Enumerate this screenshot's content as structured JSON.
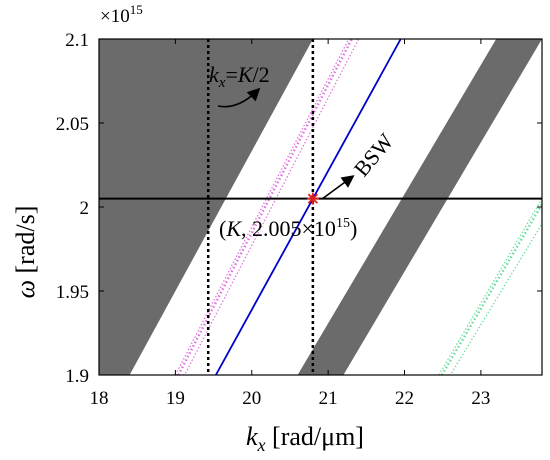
{
  "chart_data": {
    "type": "band-diagram",
    "xlabel": {
      "main": "k",
      "sub": "x",
      "unit": " [rad/μm]"
    },
    "ylabel": {
      "main": "ω",
      "unit": " [rad/s]"
    },
    "y_exponent": "×10",
    "y_exponent_power": "15",
    "xlim": [
      18,
      23.8
    ],
    "ylim": [
      1.9,
      2.1
    ],
    "x_ticks": [
      18,
      19,
      20,
      21,
      22,
      23
    ],
    "y_ticks": [
      1.9,
      1.95,
      2.0,
      2.05,
      2.1
    ],
    "x_tick_labels": [
      "18",
      "19",
      "20",
      "21",
      "22",
      "23"
    ],
    "y_tick_labels": [
      "1.9",
      "1.95",
      "2",
      "2.05",
      "2.1"
    ],
    "gray_bands": [
      {
        "name": "band-left",
        "lower": [
          [
            18.0,
            1.9
          ],
          [
            18.0,
            2.1
          ]
        ],
        "upper": [
          [
            18.4,
            1.9
          ],
          [
            20.8,
            2.1
          ]
        ]
      },
      {
        "name": "band-right",
        "lower": [
          [
            20.6,
            1.9
          ],
          [
            23.2,
            2.1
          ]
        ],
        "upper": [
          [
            21.2,
            1.9
          ],
          [
            23.8,
            2.1
          ]
        ]
      }
    ],
    "blue_line": [
      [
        19.53,
        1.9
      ],
      [
        21.95,
        2.1
      ]
    ],
    "magenta_band": [
      [
        19.0,
        1.9
      ],
      [
        21.27,
        2.1
      ],
      [
        19.12,
        1.9
      ],
      [
        21.4,
        2.1
      ]
    ],
    "green_band": [
      [
        22.45,
        1.9
      ],
      [
        23.8,
        2.005
      ],
      [
        22.6,
        1.9
      ],
      [
        23.8,
        1.99
      ]
    ],
    "hline_y": 2.005,
    "vlines_x": [
      19.43,
      20.8
    ],
    "marker": {
      "x": 20.8,
      "y": 2.005,
      "symbol": "*",
      "color": "#e02020"
    },
    "annotations": {
      "kx_label_main": "k",
      "kx_label_sub": "x",
      "kx_label_rest": "=",
      "kx_label_K": "K",
      "kx_label_tail": "/2",
      "bsw": "BSW",
      "point_open": "(",
      "point_K": "K",
      "point_mid": ", 2.005×10",
      "point_sup": "15",
      "point_close": ")"
    },
    "colors": {
      "band": "#6b6b6b",
      "line": "#0000cc",
      "magenta": "#e070e0",
      "green": "#66dd99",
      "marker": "#e02020"
    }
  }
}
